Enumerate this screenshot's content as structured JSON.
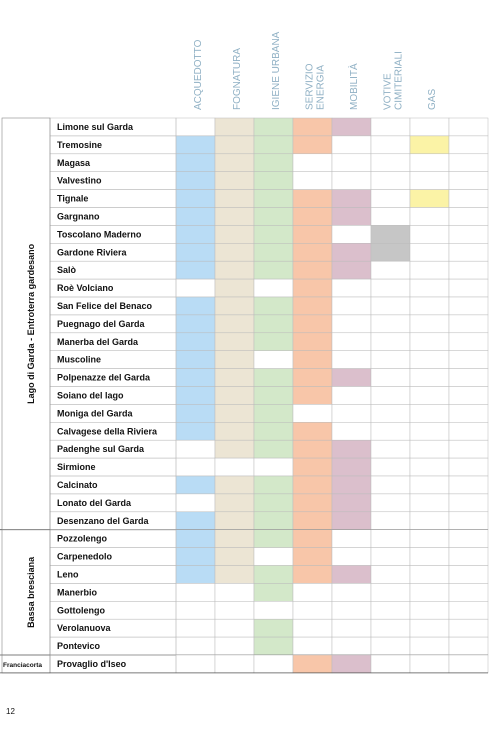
{
  "columns": [
    {
      "label": [
        "ACQUEDOTTO"
      ],
      "color": "#b9dcf5"
    },
    {
      "label": [
        "FOGNATURA"
      ],
      "color": "#ece5d4"
    },
    {
      "label": [
        "IGIENE URBANA"
      ],
      "color": "#d3e8c9"
    },
    {
      "label": [
        "SERVIZIO",
        "ENERGIA"
      ],
      "color": "#f8c6a9"
    },
    {
      "label": [
        "MOBILITÀ"
      ],
      "color": "#dbbfcc"
    },
    {
      "label": [
        "VOTIVE",
        "CIMITERIALI"
      ],
      "color": "#c6c6c6"
    },
    {
      "label": [
        "GAS"
      ],
      "color": "#fbf3a6"
    },
    {
      "label": [],
      "color": "#ffffff"
    }
  ],
  "groups": [
    {
      "name": "Lago di Garda - Entroterra gardesano",
      "rows": [
        {
          "name": "Limone sul Garda",
          "services": [
            false,
            true,
            true,
            true,
            true,
            false,
            false,
            false
          ]
        },
        {
          "name": "Tremosine",
          "services": [
            true,
            true,
            true,
            true,
            false,
            false,
            true,
            false
          ]
        },
        {
          "name": "Magasa",
          "services": [
            true,
            true,
            true,
            false,
            false,
            false,
            false,
            false
          ]
        },
        {
          "name": "Valvestino",
          "services": [
            true,
            true,
            true,
            false,
            false,
            false,
            false,
            false
          ]
        },
        {
          "name": "Tignale",
          "services": [
            true,
            true,
            true,
            true,
            true,
            false,
            true,
            false
          ]
        },
        {
          "name": "Gargnano",
          "services": [
            true,
            true,
            true,
            true,
            true,
            false,
            false,
            false
          ]
        },
        {
          "name": "Toscolano Maderno",
          "services": [
            true,
            true,
            true,
            true,
            false,
            true,
            false,
            false
          ]
        },
        {
          "name": "Gardone Riviera",
          "services": [
            true,
            true,
            true,
            true,
            true,
            true,
            false,
            false
          ]
        },
        {
          "name": "Salò",
          "services": [
            true,
            true,
            true,
            true,
            true,
            false,
            false,
            false
          ]
        },
        {
          "name": "Roè Volciano",
          "services": [
            false,
            true,
            false,
            true,
            false,
            false,
            false,
            false
          ]
        },
        {
          "name": "San Felice del Benaco",
          "services": [
            true,
            true,
            true,
            true,
            false,
            false,
            false,
            false
          ]
        },
        {
          "name": "Puegnago del Garda",
          "services": [
            true,
            true,
            true,
            true,
            false,
            false,
            false,
            false
          ]
        },
        {
          "name": "Manerba del Garda",
          "services": [
            true,
            true,
            true,
            true,
            false,
            false,
            false,
            false
          ]
        },
        {
          "name": "Muscoline",
          "services": [
            true,
            true,
            false,
            true,
            false,
            false,
            false,
            false
          ]
        },
        {
          "name": "Polpenazze del Garda",
          "services": [
            true,
            true,
            true,
            true,
            true,
            false,
            false,
            false
          ]
        },
        {
          "name": "Soiano del lago",
          "services": [
            true,
            true,
            true,
            true,
            false,
            false,
            false,
            false
          ]
        },
        {
          "name": "Moniga del Garda",
          "services": [
            true,
            true,
            true,
            false,
            false,
            false,
            false,
            false
          ]
        },
        {
          "name": "Calvagese della Riviera",
          "services": [
            true,
            true,
            true,
            true,
            false,
            false,
            false,
            false
          ]
        },
        {
          "name": "Padenghe sul Garda",
          "services": [
            false,
            true,
            true,
            true,
            true,
            false,
            false,
            false
          ]
        },
        {
          "name": "Sirmione",
          "services": [
            false,
            false,
            false,
            true,
            true,
            false,
            false,
            false
          ]
        },
        {
          "name": "Calcinato",
          "services": [
            true,
            true,
            true,
            true,
            true,
            false,
            false,
            false
          ]
        },
        {
          "name": "Lonato del Garda",
          "services": [
            false,
            true,
            true,
            true,
            true,
            false,
            false,
            false
          ]
        },
        {
          "name": "Desenzano del Garda",
          "services": [
            true,
            true,
            true,
            true,
            true,
            false,
            false,
            false
          ]
        }
      ]
    },
    {
      "name": "Bassa bresciana",
      "rows": [
        {
          "name": "Pozzolengo",
          "services": [
            true,
            true,
            true,
            true,
            false,
            false,
            false,
            false
          ]
        },
        {
          "name": "Carpenedolo",
          "services": [
            true,
            true,
            false,
            true,
            false,
            false,
            false,
            false
          ]
        },
        {
          "name": "Leno",
          "services": [
            true,
            true,
            true,
            true,
            true,
            false,
            false,
            false
          ]
        },
        {
          "name": "Manerbio",
          "services": [
            false,
            false,
            true,
            false,
            false,
            false,
            false,
            false
          ]
        },
        {
          "name": "Gottolengo",
          "services": [
            false,
            false,
            false,
            false,
            false,
            false,
            false,
            false
          ]
        },
        {
          "name": "Verolanuova",
          "services": [
            false,
            false,
            true,
            false,
            false,
            false,
            false,
            false
          ]
        },
        {
          "name": "Pontevico",
          "services": [
            false,
            false,
            true,
            false,
            false,
            false,
            false,
            false
          ]
        }
      ]
    },
    {
      "name": "Franciacorta",
      "rows": [
        {
          "name": "Provaglio d'Iseo",
          "services": [
            false,
            false,
            false,
            true,
            true,
            false,
            false,
            false
          ]
        }
      ]
    }
  ],
  "page_number": "12"
}
